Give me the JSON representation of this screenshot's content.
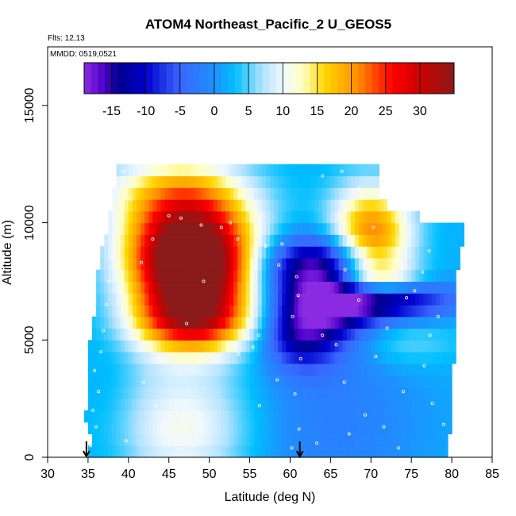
{
  "chart_data": {
    "type": "heatmap",
    "title": "ATOM4 Northeast_Pacific_2 U_GEOS5",
    "flights_label": "Flts: 12,13",
    "dates_label": "MMDD: 0519,0521",
    "xlabel": "Latitude (deg N)",
    "ylabel": "Altitude (m)",
    "xlim": [
      30,
      85
    ],
    "ylim": [
      0,
      17500
    ],
    "x_ticks": [
      "30",
      "35",
      "40",
      "45",
      "50",
      "55",
      "60",
      "65",
      "70",
      "75",
      "80",
      "85"
    ],
    "y_ticks": [
      "0",
      "5000",
      "10000",
      "15000"
    ],
    "grid": false,
    "colorbar": {
      "placement": "top",
      "range": [
        -19,
        35
      ],
      "tick_labels": [
        "-15",
        "-10",
        "-5",
        "0",
        "5",
        "10",
        "15",
        "20",
        "25",
        "30"
      ],
      "color_stops": [
        {
          "v": -19,
          "c": "#8a2be2"
        },
        {
          "v": -16,
          "c": "#4b00c8"
        },
        {
          "v": -14,
          "c": "#00008b"
        },
        {
          "v": -10,
          "c": "#0000cd"
        },
        {
          "v": -5,
          "c": "#3a66ff"
        },
        {
          "v": 0,
          "c": "#1e90ff"
        },
        {
          "v": 3,
          "c": "#00bfff"
        },
        {
          "v": 7,
          "c": "#b0e2ff"
        },
        {
          "v": 10,
          "c": "#f0f8ff"
        },
        {
          "v": 13,
          "c": "#ffffc0"
        },
        {
          "v": 16,
          "c": "#ffd700"
        },
        {
          "v": 21,
          "c": "#ff8c00"
        },
        {
          "v": 26,
          "c": "#ff0000"
        },
        {
          "v": 30,
          "c": "#cc0000"
        },
        {
          "v": 35,
          "c": "#8b1a1a"
        }
      ]
    },
    "field": {
      "alt_layers": [
        {
          "alt": 250,
          "lat": [
            35,
            79.5
          ]
        },
        {
          "alt": 750,
          "lat": [
            35.5,
            79.5
          ]
        },
        {
          "alt": 1250,
          "lat": [
            35,
            80
          ]
        },
        {
          "alt": 1750,
          "lat": [
            34.5,
            80
          ]
        },
        {
          "alt": 2250,
          "lat": [
            35,
            80
          ]
        },
        {
          "alt": 2750,
          "lat": [
            35,
            80
          ]
        },
        {
          "alt": 3250,
          "lat": [
            35,
            80
          ]
        },
        {
          "alt": 3750,
          "lat": [
            35,
            80
          ]
        },
        {
          "alt": 4250,
          "lat": [
            35,
            80.5
          ]
        },
        {
          "alt": 4750,
          "lat": [
            35,
            80.5
          ]
        },
        {
          "alt": 5250,
          "lat": [
            35.5,
            80.5
          ]
        },
        {
          "alt": 5750,
          "lat": [
            35.5,
            80.5
          ]
        },
        {
          "alt": 6250,
          "lat": [
            36,
            80.5
          ]
        },
        {
          "alt": 6750,
          "lat": [
            36,
            80.5
          ]
        },
        {
          "alt": 7250,
          "lat": [
            36,
            80.5
          ]
        },
        {
          "alt": 7750,
          "lat": [
            36,
            80.5
          ]
        },
        {
          "alt": 8250,
          "lat": [
            36.5,
            81
          ]
        },
        {
          "alt": 8750,
          "lat": [
            36.5,
            81
          ]
        },
        {
          "alt": 9250,
          "lat": [
            37,
            81.5
          ]
        },
        {
          "alt": 9750,
          "lat": [
            37.5,
            81.5
          ]
        },
        {
          "alt": 10250,
          "lat": [
            37.5,
            76
          ]
        },
        {
          "alt": 10750,
          "lat": [
            38,
            72
          ]
        },
        {
          "alt": 11250,
          "lat": [
            38,
            71
          ]
        },
        {
          "alt": 11750,
          "lat": [
            38.5,
            71
          ]
        },
        {
          "alt": 12250,
          "lat": [
            38.5,
            71
          ]
        }
      ],
      "background_u": 2,
      "features": [
        {
          "lat": 47.5,
          "alt": 9500,
          "lat_width": 5.5,
          "alt_width": 1700,
          "amp": 27
        },
        {
          "lat": 48,
          "alt": 7700,
          "lat_width": 5,
          "alt_width": 1400,
          "amp": 25
        },
        {
          "lat": 48,
          "alt": 5800,
          "lat_width": 5,
          "alt_width": 900,
          "amp": 18
        },
        {
          "lat": 47,
          "alt": 3500,
          "lat_width": 6,
          "alt_width": 2500,
          "amp": 5
        },
        {
          "lat": 47,
          "alt": 800,
          "lat_width": 6,
          "alt_width": 1500,
          "amp": 6
        },
        {
          "lat": 65,
          "alt": 6500,
          "lat_width": 4.5,
          "alt_width": 1400,
          "amp": -17
        },
        {
          "lat": 63,
          "alt": 8200,
          "lat_width": 5,
          "alt_width": 900,
          "amp": -14
        },
        {
          "lat": 61,
          "alt": 5200,
          "lat_width": 3,
          "alt_width": 1000,
          "amp": -10
        },
        {
          "lat": 72,
          "alt": 6700,
          "lat_width": 6,
          "alt_width": 600,
          "amp": -15
        },
        {
          "lat": 70,
          "alt": 9400,
          "lat_width": 3.5,
          "alt_width": 1500,
          "amp": 21
        },
        {
          "lat": 70,
          "alt": 7600,
          "lat_width": 4,
          "alt_width": 500,
          "amp": 12
        },
        {
          "lat": 72,
          "alt": 5000,
          "lat_width": 6,
          "alt_width": 800,
          "amp": 5
        },
        {
          "lat": 44,
          "alt": 11500,
          "lat_width": 7,
          "alt_width": 1000,
          "amp": 6
        },
        {
          "lat": 65,
          "alt": 1500,
          "lat_width": 8,
          "alt_width": 3000,
          "amp": -4
        },
        {
          "lat": 38,
          "alt": 3000,
          "lat_width": 2.5,
          "alt_width": 4000,
          "amp": -1
        }
      ],
      "marker_points": [
        {
          "lat": 35.3,
          "alt": 500
        },
        {
          "lat": 36.0,
          "alt": 1300
        },
        {
          "lat": 35.6,
          "alt": 2000
        },
        {
          "lat": 36.3,
          "alt": 2800
        },
        {
          "lat": 35.8,
          "alt": 3700
        },
        {
          "lat": 36.6,
          "alt": 4500
        },
        {
          "lat": 36.9,
          "alt": 5400
        },
        {
          "lat": 37.3,
          "alt": 6500
        },
        {
          "lat": 37.6,
          "alt": 7500
        },
        {
          "lat": 38.0,
          "alt": 8500
        },
        {
          "lat": 38.6,
          "alt": 9700
        },
        {
          "lat": 39.4,
          "alt": 12200
        },
        {
          "lat": 40.3,
          "alt": 11000
        },
        {
          "lat": 43.0,
          "alt": 9300
        },
        {
          "lat": 45.0,
          "alt": 10300
        },
        {
          "lat": 46.5,
          "alt": 10200
        },
        {
          "lat": 49.0,
          "alt": 9900
        },
        {
          "lat": 51.5,
          "alt": 9800
        },
        {
          "lat": 53.5,
          "alt": 9300
        },
        {
          "lat": 55.6,
          "alt": 8700
        },
        {
          "lat": 58.6,
          "alt": 8200
        },
        {
          "lat": 60.8,
          "alt": 7700
        },
        {
          "lat": 61.0,
          "alt": 6900
        },
        {
          "lat": 60.3,
          "alt": 6000
        },
        {
          "lat": 61.3,
          "alt": 4200
        },
        {
          "lat": 60.6,
          "alt": 2700
        },
        {
          "lat": 61.1,
          "alt": 1200
        },
        {
          "lat": 60.2,
          "alt": 400
        },
        {
          "lat": 57.0,
          "alt": 9000
        },
        {
          "lat": 59.0,
          "alt": 9100
        },
        {
          "lat": 56.1,
          "alt": 5200
        },
        {
          "lat": 55.4,
          "alt": 4700
        },
        {
          "lat": 53.6,
          "alt": 4400
        },
        {
          "lat": 49.3,
          "alt": 7500
        },
        {
          "lat": 47.2,
          "alt": 5700
        },
        {
          "lat": 64.0,
          "alt": 5200
        },
        {
          "lat": 66.7,
          "alt": 3200
        },
        {
          "lat": 69.3,
          "alt": 1800
        },
        {
          "lat": 71.6,
          "alt": 1300
        },
        {
          "lat": 73.4,
          "alt": 400
        },
        {
          "lat": 72.0,
          "alt": 5500
        },
        {
          "lat": 74.4,
          "alt": 6800
        },
        {
          "lat": 76.4,
          "alt": 7900
        },
        {
          "lat": 77.2,
          "alt": 8800
        },
        {
          "lat": 75.4,
          "alt": 7100
        },
        {
          "lat": 78.3,
          "alt": 6000
        },
        {
          "lat": 77.3,
          "alt": 5200
        },
        {
          "lat": 76.6,
          "alt": 3900
        },
        {
          "lat": 77.6,
          "alt": 2300
        },
        {
          "lat": 79.0,
          "alt": 1400
        },
        {
          "lat": 74.0,
          "alt": 2800
        },
        {
          "lat": 70.3,
          "alt": 9800
        },
        {
          "lat": 68.6,
          "alt": 11500
        },
        {
          "lat": 66.4,
          "alt": 12200
        },
        {
          "lat": 64.0,
          "alt": 12000
        },
        {
          "lat": 52.6,
          "alt": 10000
        },
        {
          "lat": 41.6,
          "alt": 8300
        },
        {
          "lat": 40.4,
          "alt": 6000
        },
        {
          "lat": 41.9,
          "alt": 3200
        },
        {
          "lat": 39.7,
          "alt": 700
        },
        {
          "lat": 43.3,
          "alt": 2200
        },
        {
          "lat": 66.8,
          "alt": 8000
        },
        {
          "lat": 68.5,
          "alt": 6700
        },
        {
          "lat": 65.7,
          "alt": 4800
        },
        {
          "lat": 70.6,
          "alt": 4300
        },
        {
          "lat": 58.4,
          "alt": 3300
        },
        {
          "lat": 56.2,
          "alt": 2200
        },
        {
          "lat": 63.3,
          "alt": 600
        },
        {
          "lat": 67.3,
          "alt": 1000
        }
      ],
      "flight_arrows_lat": [
        34.8,
        61.2
      ]
    }
  }
}
